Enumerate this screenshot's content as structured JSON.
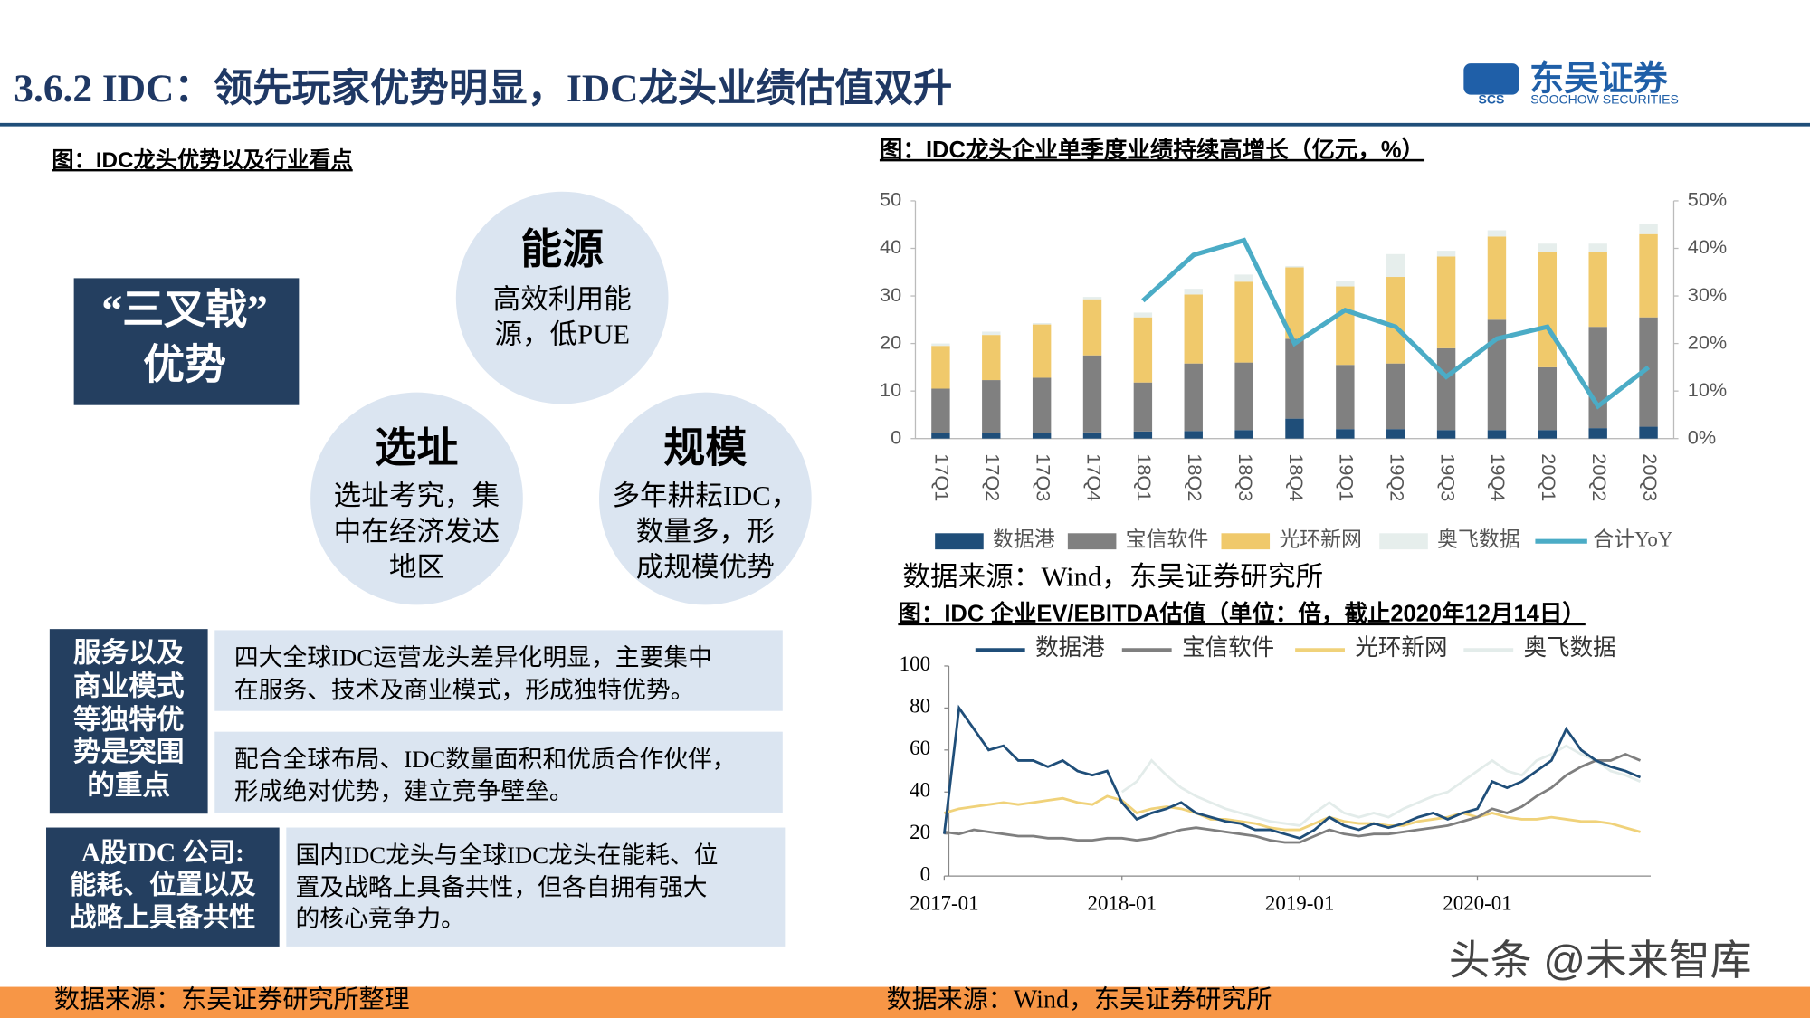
{
  "header": {
    "title": "3.6.2 IDC：领先玩家优势明显，IDC龙头业绩估值双升",
    "logo_mark": "SCS",
    "logo_name": "东吴证券",
    "logo_en": "SOOCHOW SECURITIES"
  },
  "left": {
    "caption": "图：IDC龙头优势以及行业看点",
    "trident": [
      "“三叉戟”",
      "优势"
    ],
    "circles": [
      {
        "title": "能源",
        "lines": [
          "高效利用能",
          "源，低PUE"
        ]
      },
      {
        "title": "选址",
        "lines": [
          "选址考究，集",
          "中在经济发达",
          "地区"
        ]
      },
      {
        "title": "规模",
        "lines": [
          "多年耕耘IDC，",
          "数量多，形",
          "成规模优势"
        ]
      }
    ],
    "rows": [
      {
        "label": [
          "服务以及",
          "商业模式",
          "等独特优",
          "势是突围",
          "的重点"
        ],
        "points": [
          [
            "四大全球IDC运营龙头差异化明显，主要集中",
            "在服务、技术及商业模式，形成独特优势。"
          ],
          [
            "配合全球布局、IDC数量面积和优质合作伙伴，",
            "形成绝对优势，建立竞争壁垒。"
          ]
        ]
      },
      {
        "label": [
          "A股IDC 公司:",
          "能耗、位置以及",
          "战略上具备共性"
        ],
        "points": [
          [
            "国内IDC龙头与全球IDC龙头在能耗、位",
            "置及战略上具备共性，但各自拥有强大",
            "的核心竞争力。"
          ]
        ]
      }
    ],
    "source": "数据来源：东吴证券研究所整理"
  },
  "chart_data": [
    {
      "type": "bar",
      "stacked": true,
      "title": "图：IDC龙头企业单季度业绩持续高增长（亿元，%）",
      "categories": [
        "17Q1",
        "17Q2",
        "17Q3",
        "17Q4",
        "18Q1",
        "18Q2",
        "18Q3",
        "18Q4",
        "19Q1",
        "19Q2",
        "19Q3",
        "19Q4",
        "20Q1",
        "20Q2",
        "20Q3"
      ],
      "series": [
        {
          "name": "数据港",
          "color": "#1f4e79",
          "values": [
            1.2,
            1.2,
            1.2,
            1.3,
            1.5,
            1.6,
            1.8,
            4.2,
            2.0,
            2.0,
            1.8,
            1.8,
            1.8,
            2.2,
            2.5
          ]
        },
        {
          "name": "宝信软件",
          "color": "#808080",
          "values": [
            9.3,
            11.1,
            11.6,
            16.2,
            10.3,
            14.2,
            14.2,
            16.8,
            13.5,
            13.8,
            17.2,
            23.2,
            13.2,
            21.3,
            23.0
          ]
        },
        {
          "name": "光环新网",
          "color": "#f0c96b",
          "values": [
            9.0,
            9.5,
            11.2,
            11.8,
            13.7,
            14.5,
            17.0,
            15.0,
            16.5,
            18.2,
            19.3,
            17.5,
            24.2,
            15.7,
            17.5
          ]
        },
        {
          "name": "奥飞数据",
          "color": "#e6eeec",
          "values": [
            0.5,
            0.7,
            0.3,
            0.5,
            1.0,
            1.2,
            1.5,
            0.3,
            1.2,
            4.8,
            1.2,
            1.3,
            1.8,
            1.8,
            2.2
          ]
        },
        {
          "name": "合计YoY",
          "color": "#4bacc6",
          "axis": "y2",
          "values": [
            null,
            null,
            null,
            null,
            29,
            38.6,
            41.7,
            20,
            27,
            23.5,
            13,
            21,
            23.5,
            6.8,
            15
          ]
        }
      ],
      "ylim": [
        0,
        50
      ],
      "yticks": [
        0,
        10,
        20,
        30,
        40,
        50
      ],
      "y2lim": [
        0,
        50
      ],
      "y2ticks": [
        {
          "value": 0,
          "label": "0%"
        },
        {
          "value": 10,
          "label": "10%"
        },
        {
          "value": 20,
          "label": "20%"
        },
        {
          "value": 30,
          "label": "30%"
        },
        {
          "value": 40,
          "label": "40%"
        },
        {
          "value": 50,
          "label": "50%"
        }
      ],
      "grid": false,
      "legend": "bottom",
      "source": "数据来源：Wind，东吴证券研究所"
    },
    {
      "type": "line",
      "title": "图：IDC 企业EV/EBITDA估值（单位：倍，截止2020年12月14日）",
      "x": [
        "2017-01",
        "2017-02",
        "2017-03",
        "2017-04",
        "2017-05",
        "2017-06",
        "2017-07",
        "2017-08",
        "2017-09",
        "2017-10",
        "2017-11",
        "2017-12",
        "2018-01",
        "2018-02",
        "2018-03",
        "2018-04",
        "2018-05",
        "2018-06",
        "2018-07",
        "2018-08",
        "2018-09",
        "2018-10",
        "2018-11",
        "2018-12",
        "2019-01",
        "2019-02",
        "2019-03",
        "2019-04",
        "2019-05",
        "2019-06",
        "2019-07",
        "2019-08",
        "2019-09",
        "2019-10",
        "2019-11",
        "2019-12",
        "2020-01",
        "2020-02",
        "2020-03",
        "2020-04",
        "2020-05",
        "2020-06",
        "2020-07",
        "2020-08",
        "2020-09",
        "2020-10",
        "2020-11",
        "2020-12"
      ],
      "series": [
        {
          "name": "数据港",
          "color": "#1f4e79",
          "values": [
            20,
            80,
            70,
            60,
            62,
            55,
            55,
            52,
            55,
            50,
            48,
            50,
            35,
            27,
            30,
            32,
            35,
            30,
            28,
            26,
            25,
            22,
            22,
            20,
            18,
            22,
            28,
            24,
            22,
            25,
            23,
            25,
            28,
            30,
            27,
            30,
            32,
            45,
            42,
            45,
            50,
            55,
            70,
            60,
            55,
            52,
            50,
            47
          ]
        },
        {
          "name": "宝信软件",
          "color": "#7f7f7f",
          "values": [
            21,
            20,
            22,
            21,
            20,
            19,
            19,
            18,
            18,
            17,
            17,
            18,
            18,
            17,
            18,
            20,
            22,
            23,
            22,
            21,
            20,
            19,
            17,
            16,
            16,
            19,
            22,
            20,
            19,
            20,
            20,
            21,
            22,
            23,
            24,
            26,
            28,
            32,
            30,
            33,
            38,
            42,
            48,
            52,
            55,
            55,
            58,
            55
          ]
        },
        {
          "name": "光环新网",
          "color": "#f0d27a",
          "values": [
            30,
            32,
            33,
            34,
            35,
            34,
            35,
            36,
            37,
            35,
            34,
            38,
            36,
            30,
            32,
            33,
            32,
            30,
            27,
            27,
            26,
            25,
            23,
            22,
            22,
            25,
            28,
            26,
            25,
            25,
            24,
            24,
            26,
            27,
            28,
            30,
            28,
            30,
            28,
            27,
            27,
            28,
            27,
            26,
            26,
            25,
            23,
            21
          ]
        },
        {
          "name": "奥飞数据",
          "color": "#e3ecea",
          "values": [
            null,
            null,
            null,
            null,
            null,
            null,
            null,
            null,
            null,
            null,
            null,
            null,
            40,
            45,
            55,
            48,
            42,
            38,
            35,
            32,
            30,
            28,
            26,
            25,
            24,
            30,
            35,
            30,
            28,
            30,
            28,
            32,
            35,
            38,
            40,
            45,
            50,
            55,
            50,
            48,
            55,
            58,
            62,
            58,
            55,
            50,
            48,
            45
          ]
        }
      ],
      "ylim": [
        0,
        100
      ],
      "yticks": [
        0,
        20,
        40,
        60,
        80,
        100
      ],
      "xticks": [
        "2017-01",
        "2018-01",
        "2019-01",
        "2020-01"
      ],
      "grid": false,
      "legend": "top",
      "source": "数据来源：Wind，东吴证券研究所"
    }
  ],
  "watermark": "头条 @未来智库"
}
